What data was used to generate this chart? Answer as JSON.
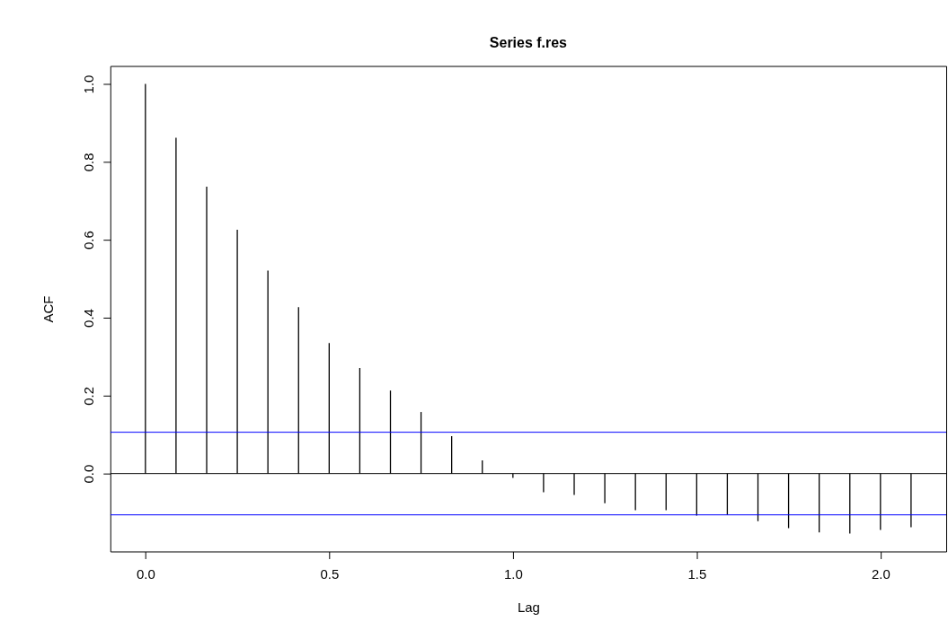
{
  "chart_data": {
    "type": "bar",
    "title": "Series  f.res",
    "xlabel": "Lag",
    "ylabel": "ACF",
    "x": [
      0,
      0.0833,
      0.1667,
      0.25,
      0.3333,
      0.4167,
      0.5,
      0.5833,
      0.6667,
      0.75,
      0.8333,
      0.9167,
      1.0,
      1.0833,
      1.1667,
      1.25,
      1.3333,
      1.4167,
      1.5,
      1.5833,
      1.6667,
      1.75,
      1.8333,
      1.9167,
      2.0,
      2.0833
    ],
    "series": [
      {
        "color": "#000000",
        "values": [
          1.0,
          0.862,
          0.736,
          0.626,
          0.521,
          0.427,
          0.335,
          0.271,
          0.213,
          0.158,
          0.096,
          0.034,
          -0.011,
          -0.048,
          -0.055,
          -0.076,
          -0.094,
          -0.094,
          -0.108,
          -0.106,
          -0.122,
          -0.14,
          -0.151,
          -0.154,
          -0.145,
          -0.138
        ]
      }
    ],
    "grid": false,
    "legend": false,
    "xlim": [
      -0.0833,
      2.1667
    ],
    "xticks": [
      {
        "value": 0,
        "label": "0.0"
      },
      0.5,
      {
        "value": 1,
        "label": "1.0"
      },
      1.5,
      {
        "value": 2,
        "label": "2.0"
      }
    ],
    "ylim": [
      -0.2,
      1.046
    ],
    "yticks": [
      {
        "value": 0,
        "label": "0.0"
      },
      0.2,
      0.4,
      0.6,
      0.8,
      {
        "value": 1,
        "label": "1.0"
      }
    ],
    "ref_lines": [
      {
        "axis": "y",
        "value": 0,
        "color": "#000000"
      },
      {
        "axis": "y",
        "value": 0.106,
        "color": "#0000ff"
      },
      {
        "axis": "y",
        "value": -0.106,
        "color": "#0000ff"
      }
    ]
  }
}
